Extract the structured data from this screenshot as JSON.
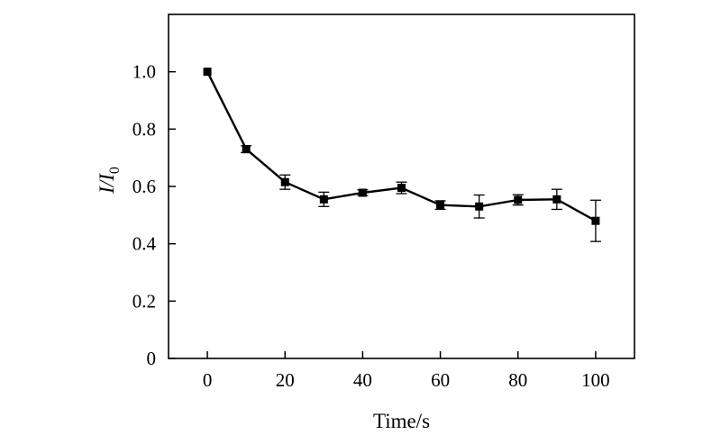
{
  "chart_data": {
    "type": "line",
    "title": "",
    "xlabel": "Time/s",
    "ylabel": {
      "main": "I/I",
      "subscript": "0"
    },
    "xlim": [
      -10,
      110
    ],
    "ylim": [
      0,
      1.2
    ],
    "x_ticks": [
      0,
      20,
      40,
      60,
      80,
      100
    ],
    "x_tick_labels": [
      "0",
      "20",
      "40",
      "60",
      "80",
      "100"
    ],
    "y_ticks": [
      0,
      0.2,
      0.4,
      0.6,
      0.8,
      1.0
    ],
    "y_tick_labels": [
      "0",
      "0.2",
      "0.4",
      "0.6",
      "0.8",
      "1.0"
    ],
    "grid": false,
    "legend": "none",
    "series": [
      {
        "color": "#000000",
        "marker": "square",
        "points": [
          {
            "x": 0,
            "y": 1.0,
            "err": 0.0
          },
          {
            "x": 10,
            "y": 0.73,
            "err": 0.012
          },
          {
            "x": 20,
            "y": 0.615,
            "err": 0.025
          },
          {
            "x": 30,
            "y": 0.555,
            "err": 0.025
          },
          {
            "x": 40,
            "y": 0.578,
            "err": 0.01
          },
          {
            "x": 50,
            "y": 0.595,
            "err": 0.02
          },
          {
            "x": 60,
            "y": 0.535,
            "err": 0.015
          },
          {
            "x": 70,
            "y": 0.53,
            "err": 0.04
          },
          {
            "x": 80,
            "y": 0.553,
            "err": 0.018
          },
          {
            "x": 90,
            "y": 0.555,
            "err": 0.035
          },
          {
            "x": 100,
            "y": 0.48,
            "err": 0.072
          }
        ]
      }
    ]
  }
}
